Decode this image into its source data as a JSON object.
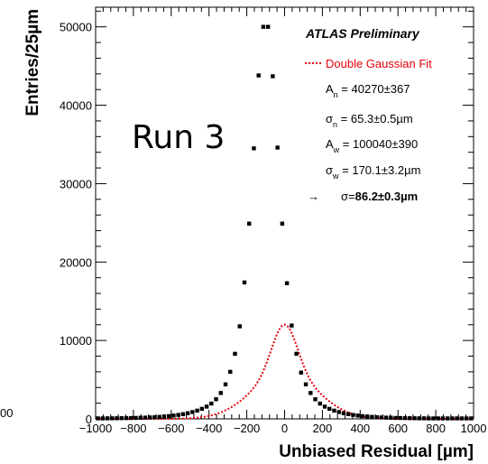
{
  "chart_data": {
    "type": "scatter",
    "xlabel": "Unbiased Residual [µm]",
    "ylabel": "Entries/25µm",
    "xlim": [
      -1000,
      1000
    ],
    "ylim": [
      0,
      52500
    ],
    "x_ticks": [
      "-1000",
      "-800",
      "-600",
      "-400",
      "-200",
      "0",
      "200",
      "400",
      "600",
      "800",
      "1000"
    ],
    "y_ticks": [
      "0",
      "10000",
      "20000",
      "30000",
      "40000",
      "50000"
    ],
    "grid": false,
    "legend_position": "top-right",
    "stray_left_label": "00",
    "annotations": {
      "experiment": "ATLAS Preliminary",
      "fit_label": "Double Gaussian Fit",
      "run_label": "Run 3",
      "params": [
        {
          "sym": "A",
          "sub": "n",
          "text": " = 40270±367"
        },
        {
          "sym": "σ",
          "sub": "n",
          "text": " = 65.3±0.5µm"
        },
        {
          "sym": "A",
          "sub": "w",
          "text": " = 100040±390"
        },
        {
          "sym": "σ",
          "sub": "w",
          "text": " = 170.1±3.2µm"
        }
      ],
      "result_arrow": "→",
      "result_prefix": "σ=",
      "result_value": "86.2±0.3µm"
    },
    "fit_params": {
      "A_n": 40270,
      "sigma_n": 65.3,
      "A_w": 100040,
      "sigma_w": 170.1
    },
    "series": [
      {
        "name": "Double Gaussian Fit",
        "style": "dotted-line",
        "color": "#e8000b"
      },
      {
        "style": "markers",
        "color": "#000000",
        "x": [
          -987.5,
          -962.5,
          -937.5,
          -912.5,
          -887.5,
          -862.5,
          -837.5,
          -812.5,
          -787.5,
          -762.5,
          -737.5,
          -712.5,
          -687.5,
          -662.5,
          -637.5,
          -612.5,
          -587.5,
          -562.5,
          -537.5,
          -512.5,
          -487.5,
          -462.5,
          -437.5,
          -412.5,
          -387.5,
          -362.5,
          -337.5,
          -312.5,
          -287.5,
          -262.5,
          -237.5,
          -212.5,
          -187.5,
          -162.5,
          -137.5,
          -112.5,
          -87.5,
          -62.5,
          -37.5,
          -12.5,
          12.5,
          37.5,
          62.5,
          87.5,
          112.5,
          137.5,
          162.5,
          187.5,
          212.5,
          237.5,
          262.5,
          287.5,
          312.5,
          337.5,
          362.5,
          387.5,
          412.5,
          437.5,
          462.5,
          487.5,
          512.5,
          537.5,
          562.5,
          587.5,
          612.5,
          637.5,
          662.5,
          687.5,
          712.5,
          737.5,
          762.5,
          787.5,
          812.5,
          837.5,
          862.5,
          887.5,
          912.5,
          937.5,
          962.5,
          987.5
        ],
        "y": [
          60,
          60,
          70,
          70,
          80,
          90,
          100,
          110,
          120,
          140,
          160,
          180,
          210,
          250,
          300,
          350,
          420,
          500,
          600,
          720,
          870,
          1050,
          1280,
          1560,
          1950,
          2500,
          3300,
          4400,
          6000,
          8300,
          11800,
          17400,
          24900,
          34500,
          43800,
          50000,
          50000,
          43700,
          34600,
          24900,
          17300,
          11900,
          8300,
          5900,
          4400,
          3300,
          2500,
          1950,
          1560,
          1280,
          1050,
          870,
          720,
          600,
          500,
          420,
          350,
          300,
          250,
          210,
          180,
          160,
          140,
          120,
          110,
          100,
          90,
          80,
          70,
          70,
          60,
          60,
          60,
          60,
          60,
          60,
          60,
          60,
          60,
          60
        ]
      }
    ]
  }
}
